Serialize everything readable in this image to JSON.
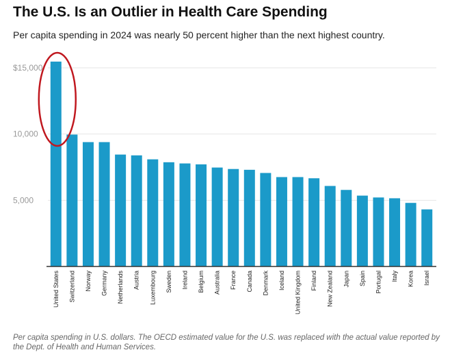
{
  "title": "The U.S. Is an Outlier in Health Care Spending",
  "subtitle": "Per capita spending in 2024 was nearly 50 percent higher than the next highest country.",
  "note": "Per capita spending in U.S. dollars. The OECD estimated value for the U.S. was replaced with the actual value reported by the Dept. of Health and Human Services.",
  "colors": {
    "bar": "#1b9ac9",
    "highlight": "#c0181f",
    "grid": "#e6e6e6",
    "axis": "#333333"
  },
  "chart_data": {
    "type": "bar",
    "title": "The U.S. Is an Outlier in Health Care Spending",
    "subtitle": "Per capita spending in 2024 was nearly 50 percent higher than the next highest country.",
    "xlabel": "",
    "ylabel": "",
    "ylim": [
      0,
      15000
    ],
    "yticks": [
      {
        "value": 5000,
        "label": "5,000"
      },
      {
        "value": 10000,
        "label": "10,000"
      },
      {
        "value": 15000,
        "label": "$15,000"
      }
    ],
    "grid": true,
    "highlighted_category": "United States",
    "categories": [
      "United States",
      "Switzerland",
      "Norway",
      "Germany",
      "Netherlands",
      "Austria",
      "Luxembourg",
      "Sweden",
      "Ireland",
      "Belgium",
      "Australia",
      "France",
      "Canada",
      "Denmark",
      "Iceland",
      "United Kingdom",
      "Finland",
      "New Zealand",
      "Japan",
      "Spain",
      "Portugal",
      "Italy",
      "Korea",
      "Israel"
    ],
    "values": [
      15470,
      9960,
      9390,
      9390,
      8450,
      8390,
      8090,
      7870,
      7780,
      7710,
      7470,
      7360,
      7300,
      7060,
      6750,
      6750,
      6660,
      6080,
      5780,
      5350,
      5210,
      5150,
      4800,
      4310
    ]
  }
}
